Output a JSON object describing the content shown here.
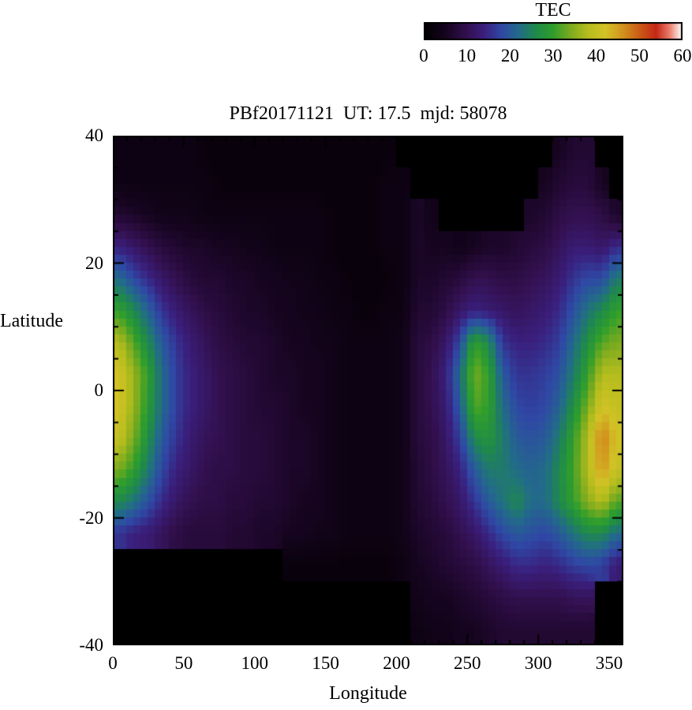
{
  "title": "PBf20171121  UT: 17.5  mjd: 58078",
  "colorbar": {
    "title": "TEC",
    "ticks": [
      "0",
      "10",
      "20",
      "30",
      "40",
      "50",
      "60"
    ],
    "min": 0,
    "max": 60
  },
  "axes": {
    "xlabel": "Longitude",
    "ylabel": "Latitude",
    "xticks": [
      0,
      50,
      100,
      150,
      200,
      250,
      300,
      350
    ],
    "yticks": [
      40,
      20,
      0,
      -20,
      -40
    ],
    "xlim": [
      0,
      360
    ],
    "ylim": [
      -40,
      40
    ],
    "x_minor_step": 10,
    "y_minor_step": 5
  },
  "chart_data": {
    "type": "heatmap",
    "title": "PBf20171121  UT: 17.5  mjd: 58078",
    "xlabel": "Longitude",
    "ylabel": "Latitude",
    "colorbar_label": "TEC",
    "value_range": [
      0,
      60
    ],
    "xlim": [
      0,
      360
    ],
    "ylim": [
      -40,
      40
    ],
    "masked_value": 0,
    "x_centers": [
      5,
      15,
      25,
      35,
      45,
      55,
      65,
      75,
      85,
      95,
      105,
      115,
      125,
      135,
      145,
      155,
      165,
      175,
      185,
      195,
      205,
      215,
      225,
      235,
      245,
      255,
      265,
      275,
      285,
      295,
      305,
      315,
      325,
      335,
      345,
      355
    ],
    "y_centers": [
      37.5,
      32.5,
      27.5,
      22.5,
      17.5,
      12.5,
      7.5,
      2.5,
      -2.5,
      -7.5,
      -12.5,
      -17.5,
      -22.5,
      -27.5,
      -32.5,
      -37.5
    ],
    "values": [
      [
        3,
        3,
        3,
        3,
        3,
        3,
        2,
        2,
        2,
        2,
        2,
        2,
        2,
        2,
        2,
        2,
        2,
        2,
        2,
        2,
        0,
        0,
        0,
        0,
        0,
        0,
        0,
        0,
        0,
        0,
        0,
        5,
        7,
        7,
        0,
        0
      ],
      [
        3,
        3,
        3,
        3,
        3,
        3,
        3,
        2,
        2,
        2,
        2,
        2,
        2,
        2,
        2,
        2,
        2,
        2,
        2,
        3,
        3,
        0,
        0,
        0,
        0,
        0,
        0,
        0,
        0,
        0,
        5,
        7,
        8,
        8,
        5,
        0
      ],
      [
        7,
        6,
        5,
        4,
        4,
        4,
        3,
        3,
        3,
        3,
        3,
        3,
        3,
        3,
        3,
        2,
        2,
        2,
        2,
        3,
        3,
        6,
        4,
        0,
        0,
        0,
        0,
        0,
        0,
        6,
        7,
        9,
        10,
        10,
        9,
        6
      ],
      [
        14,
        12,
        10,
        8,
        7,
        6,
        6,
        5,
        5,
        4,
        4,
        3,
        3,
        3,
        3,
        2,
        2,
        2,
        2,
        3,
        3,
        6,
        5,
        5,
        4,
        5,
        6,
        6,
        7,
        8,
        9,
        11,
        13,
        13,
        12,
        15
      ],
      [
        22,
        18,
        15,
        12,
        10,
        8,
        7,
        7,
        6,
        6,
        5,
        5,
        4,
        4,
        3,
        3,
        2,
        2,
        2,
        2,
        3,
        6,
        6,
        7,
        8,
        10,
        10,
        9,
        9,
        10,
        11,
        13,
        16,
        18,
        18,
        24
      ],
      [
        30,
        26,
        21,
        16,
        13,
        11,
        9,
        8,
        7,
        6,
        6,
        5,
        5,
        4,
        4,
        3,
        3,
        2,
        2,
        3,
        3,
        7,
        7,
        9,
        12,
        14,
        13,
        12,
        11,
        12,
        13,
        15,
        19,
        23,
        26,
        30
      ],
      [
        38,
        32,
        26,
        20,
        16,
        13,
        11,
        9,
        8,
        7,
        7,
        6,
        5,
        5,
        4,
        4,
        3,
        3,
        3,
        3,
        4,
        8,
        9,
        12,
        18,
        30,
        26,
        16,
        14,
        14,
        15,
        17,
        22,
        27,
        32,
        34
      ],
      [
        42,
        36,
        30,
        22,
        17,
        14,
        12,
        10,
        9,
        8,
        7,
        6,
        6,
        5,
        5,
        4,
        3,
        3,
        3,
        3,
        4,
        8,
        10,
        14,
        22,
        34,
        30,
        20,
        16,
        16,
        17,
        19,
        24,
        30,
        38,
        38
      ],
      [
        42,
        36,
        29,
        22,
        17,
        14,
        12,
        10,
        9,
        8,
        7,
        7,
        6,
        5,
        5,
        4,
        3,
        3,
        3,
        3,
        4,
        8,
        10,
        13,
        20,
        32,
        30,
        22,
        18,
        17,
        18,
        21,
        27,
        34,
        42,
        40
      ],
      [
        40,
        34,
        27,
        20,
        16,
        13,
        11,
        10,
        9,
        8,
        8,
        7,
        6,
        6,
        5,
        4,
        3,
        3,
        3,
        3,
        4,
        8,
        9,
        12,
        17,
        26,
        28,
        24,
        20,
        19,
        20,
        24,
        30,
        38,
        48,
        42
      ],
      [
        34,
        30,
        24,
        18,
        14,
        12,
        10,
        9,
        9,
        8,
        8,
        7,
        6,
        6,
        5,
        4,
        3,
        3,
        3,
        3,
        4,
        7,
        9,
        11,
        14,
        20,
        24,
        24,
        22,
        21,
        22,
        26,
        31,
        38,
        46,
        40
      ],
      [
        26,
        23,
        19,
        15,
        12,
        10,
        9,
        9,
        8,
        8,
        7,
        7,
        6,
        5,
        5,
        4,
        3,
        3,
        3,
        3,
        4,
        7,
        8,
        10,
        12,
        16,
        20,
        23,
        26,
        22,
        22,
        26,
        30,
        35,
        38,
        32
      ],
      [
        16,
        14,
        13,
        11,
        9,
        8,
        8,
        8,
        7,
        7,
        6,
        6,
        5,
        5,
        4,
        4,
        3,
        3,
        3,
        3,
        4,
        6,
        7,
        8,
        10,
        12,
        15,
        18,
        20,
        19,
        18,
        20,
        23,
        26,
        26,
        22
      ],
      [
        0,
        0,
        0,
        0,
        0,
        0,
        0,
        0,
        0,
        0,
        0,
        0,
        2,
        2,
        2,
        2,
        2,
        2,
        2,
        2,
        3,
        5,
        6,
        7,
        8,
        9,
        11,
        13,
        15,
        15,
        14,
        15,
        17,
        18,
        17,
        13
      ],
      [
        0,
        0,
        0,
        0,
        0,
        0,
        0,
        0,
        0,
        0,
        0,
        0,
        0,
        0,
        0,
        0,
        0,
        0,
        0,
        0,
        0,
        4,
        5,
        5,
        6,
        7,
        8,
        9,
        10,
        10,
        10,
        10,
        11,
        11,
        0,
        0
      ],
      [
        0,
        0,
        0,
        0,
        0,
        0,
        0,
        0,
        0,
        0,
        0,
        0,
        0,
        0,
        0,
        0,
        0,
        0,
        0,
        0,
        0,
        3,
        4,
        4,
        5,
        5,
        6,
        7,
        7,
        7,
        7,
        7,
        7,
        7,
        0,
        0
      ]
    ],
    "colormap_stops": [
      [
        0,
        "#000000"
      ],
      [
        5,
        "#16041f"
      ],
      [
        10,
        "#33104f"
      ],
      [
        14,
        "#3a1f7d"
      ],
      [
        18,
        "#2f48a5"
      ],
      [
        22,
        "#226b8a"
      ],
      [
        26,
        "#1f8a4a"
      ],
      [
        30,
        "#2f9e2c"
      ],
      [
        34,
        "#7cab1f"
      ],
      [
        38,
        "#b5bd1d"
      ],
      [
        42,
        "#d2c226"
      ],
      [
        46,
        "#d2961e"
      ],
      [
        50,
        "#cc5c16"
      ],
      [
        54,
        "#c42817"
      ],
      [
        57,
        "#ea7a6a"
      ],
      [
        60,
        "#ffffff"
      ]
    ],
    "frame_color": "#000000",
    "background_color": "#ffffff"
  }
}
